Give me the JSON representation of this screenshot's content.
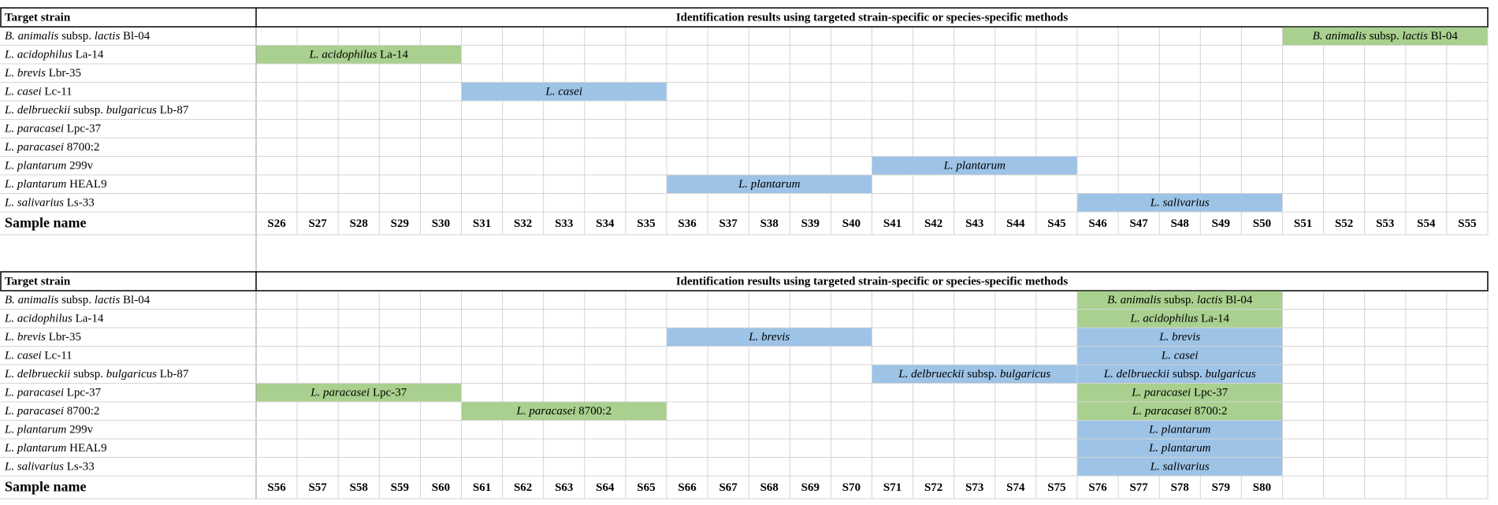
{
  "panels": [
    {
      "header": {
        "target": "Target strain",
        "results": "Identification results using targeted strain-specific or species-specific methods"
      },
      "strains": [
        [
          {
            "t": "B. animalis",
            "i": true
          },
          {
            "t": " subsp. ",
            "i": false
          },
          {
            "t": "lactis",
            "i": true
          },
          {
            "t": " Bl-04",
            "i": false
          }
        ],
        [
          {
            "t": "L. acidophilus",
            "i": true
          },
          {
            "t": " La-14",
            "i": false
          }
        ],
        [
          {
            "t": "L. brevis",
            "i": true
          },
          {
            "t": " Lbr-35",
            "i": false
          }
        ],
        [
          {
            "t": "L. casei",
            "i": true
          },
          {
            "t": " Lc-11",
            "i": false
          }
        ],
        [
          {
            "t": "L. delbrueckii",
            "i": true
          },
          {
            "t": " subsp. ",
            "i": false
          },
          {
            "t": "bulgaricus",
            "i": true
          },
          {
            "t": " Lb-87",
            "i": false
          }
        ],
        [
          {
            "t": "L. paracasei",
            "i": true
          },
          {
            "t": " Lpc-37",
            "i": false
          }
        ],
        [
          {
            "t": "L. paracasei",
            "i": true
          },
          {
            "t": " 8700:2",
            "i": false
          }
        ],
        [
          {
            "t": "L. plantarum",
            "i": true
          },
          {
            "t": " 299v",
            "i": false
          }
        ],
        [
          {
            "t": "L. plantarum",
            "i": true
          },
          {
            "t": " HEAL9",
            "i": false
          }
        ],
        [
          {
            "t": "L. salivarius",
            "i": true
          },
          {
            "t": " Ls-33",
            "i": false
          }
        ]
      ],
      "results": [
        {
          "row": 0,
          "start": 25,
          "span": 5,
          "color": "#a9d08e",
          "label": [
            {
              "t": "B. animalis",
              "i": true
            },
            {
              "t": " subsp. ",
              "i": false
            },
            {
              "t": "lactis",
              "i": true
            },
            {
              "t": " Bl-04",
              "i": false
            }
          ]
        },
        {
          "row": 1,
          "start": 0,
          "span": 5,
          "color": "#a9d08e",
          "label": [
            {
              "t": "L. acidophilus",
              "i": true
            },
            {
              "t": " La-14",
              "i": false
            }
          ]
        },
        {
          "row": 3,
          "start": 5,
          "span": 5,
          "color": "#9dc3e6",
          "label": [
            {
              "t": "L. casei",
              "i": true
            }
          ]
        },
        {
          "row": 7,
          "start": 15,
          "span": 5,
          "color": "#9dc3e6",
          "label": [
            {
              "t": "L. plantarum",
              "i": true
            }
          ]
        },
        {
          "row": 8,
          "start": 10,
          "span": 5,
          "color": "#9dc3e6",
          "label": [
            {
              "t": "L. plantarum",
              "i": true
            }
          ]
        },
        {
          "row": 9,
          "start": 20,
          "span": 5,
          "color": "#9dc3e6",
          "label": [
            {
              "t": "L. salivarius",
              "i": true
            }
          ]
        }
      ],
      "sample_label": "Sample name",
      "samples": [
        "S26",
        "S27",
        "S28",
        "S29",
        "S30",
        "S31",
        "S32",
        "S33",
        "S34",
        "S35",
        "S36",
        "S37",
        "S38",
        "S39",
        "S40",
        "S41",
        "S42",
        "S43",
        "S44",
        "S45",
        "S46",
        "S47",
        "S48",
        "S49",
        "S50",
        "S51",
        "S52",
        "S53",
        "S54",
        "S55"
      ]
    },
    {
      "header": {
        "target": "Target strain",
        "results": "Identification results using targeted strain-specific or species-specific methods"
      },
      "strains": [
        [
          {
            "t": "B. animalis",
            "i": true
          },
          {
            "t": " subsp. ",
            "i": false
          },
          {
            "t": "lactis",
            "i": true
          },
          {
            "t": " Bl-04",
            "i": false
          }
        ],
        [
          {
            "t": "L. acidophilus",
            "i": true
          },
          {
            "t": " La-14",
            "i": false
          }
        ],
        [
          {
            "t": "L. brevis",
            "i": true
          },
          {
            "t": " Lbr-35",
            "i": false
          }
        ],
        [
          {
            "t": "L. casei",
            "i": true
          },
          {
            "t": " Lc-11",
            "i": false
          }
        ],
        [
          {
            "t": "L. delbrueckii",
            "i": true
          },
          {
            "t": " subsp. ",
            "i": false
          },
          {
            "t": "bulgaricus",
            "i": true
          },
          {
            "t": " Lb-87",
            "i": false
          }
        ],
        [
          {
            "t": "L. paracasei",
            "i": true
          },
          {
            "t": " Lpc-37",
            "i": false
          }
        ],
        [
          {
            "t": "L. paracasei",
            "i": true
          },
          {
            "t": " 8700:2",
            "i": false
          }
        ],
        [
          {
            "t": "L. plantarum",
            "i": true
          },
          {
            "t": " 299v",
            "i": false
          }
        ],
        [
          {
            "t": "L. plantarum",
            "i": true
          },
          {
            "t": " HEAL9",
            "i": false
          }
        ],
        [
          {
            "t": "L. salivarius",
            "i": true
          },
          {
            "t": " Ls-33",
            "i": false
          }
        ]
      ],
      "results": [
        {
          "row": 2,
          "start": 10,
          "span": 5,
          "color": "#9dc3e6",
          "label": [
            {
              "t": "L. brevis",
              "i": true
            }
          ]
        },
        {
          "row": 4,
          "start": 15,
          "span": 5,
          "color": "#9dc3e6",
          "label": [
            {
              "t": "L. delbrueckii",
              "i": true
            },
            {
              "t": " subsp. ",
              "i": false
            },
            {
              "t": "bulgaricus",
              "i": true
            }
          ]
        },
        {
          "row": 5,
          "start": 0,
          "span": 5,
          "color": "#a9d08e",
          "label": [
            {
              "t": "L. paracasei",
              "i": true
            },
            {
              "t": " Lpc-37",
              "i": false
            }
          ]
        },
        {
          "row": 6,
          "start": 5,
          "span": 5,
          "color": "#a9d08e",
          "label": [
            {
              "t": "L. paracasei",
              "i": true
            },
            {
              "t": " 8700:2",
              "i": false
            }
          ]
        },
        {
          "row": 0,
          "start": 20,
          "span": 5,
          "color": "#a9d08e",
          "label": [
            {
              "t": "B. animalis",
              "i": true
            },
            {
              "t": " subsp. ",
              "i": false
            },
            {
              "t": "lactis",
              "i": true
            },
            {
              "t": " Bl-04",
              "i": false
            }
          ]
        },
        {
          "row": 1,
          "start": 20,
          "span": 5,
          "color": "#a9d08e",
          "label": [
            {
              "t": "L. acidophilus",
              "i": true
            },
            {
              "t": " La-14",
              "i": false
            }
          ]
        },
        {
          "row": 2,
          "start": 20,
          "span": 5,
          "color": "#9dc3e6",
          "label": [
            {
              "t": "L. brevis",
              "i": true
            }
          ]
        },
        {
          "row": 3,
          "start": 20,
          "span": 5,
          "color": "#9dc3e6",
          "label": [
            {
              "t": "L. casei",
              "i": true
            }
          ]
        },
        {
          "row": 4,
          "start": 20,
          "span": 5,
          "color": "#9dc3e6",
          "label": [
            {
              "t": "L. delbrueckii",
              "i": true
            },
            {
              "t": " subsp. ",
              "i": false
            },
            {
              "t": "bulgaricus",
              "i": true
            }
          ]
        },
        {
          "row": 5,
          "start": 20,
          "span": 5,
          "color": "#a9d08e",
          "label": [
            {
              "t": "L. paracasei",
              "i": true
            },
            {
              "t": " Lpc-37",
              "i": false
            }
          ]
        },
        {
          "row": 6,
          "start": 20,
          "span": 5,
          "color": "#a9d08e",
          "label": [
            {
              "t": "L. paracasei",
              "i": true
            },
            {
              "t": " 8700:2",
              "i": false
            }
          ]
        },
        {
          "row": 7,
          "start": 20,
          "span": 5,
          "color": "#9dc3e6",
          "label": [
            {
              "t": "L. plantarum",
              "i": true
            }
          ]
        },
        {
          "row": 8,
          "start": 20,
          "span": 5,
          "color": "#9dc3e6",
          "label": [
            {
              "t": "L. plantarum",
              "i": true
            }
          ]
        },
        {
          "row": 9,
          "start": 20,
          "span": 5,
          "color": "#9dc3e6",
          "label": [
            {
              "t": "L. salivarius",
              "i": true
            }
          ]
        }
      ],
      "sample_label": "Sample name",
      "samples": [
        "S56",
        "S57",
        "S58",
        "S59",
        "S60",
        "S61",
        "S62",
        "S63",
        "S64",
        "S65",
        "S66",
        "S67",
        "S68",
        "S69",
        "S70",
        "S71",
        "S72",
        "S73",
        "S74",
        "S75",
        "S76",
        "S77",
        "S78",
        "S79",
        "S80"
      ]
    }
  ]
}
